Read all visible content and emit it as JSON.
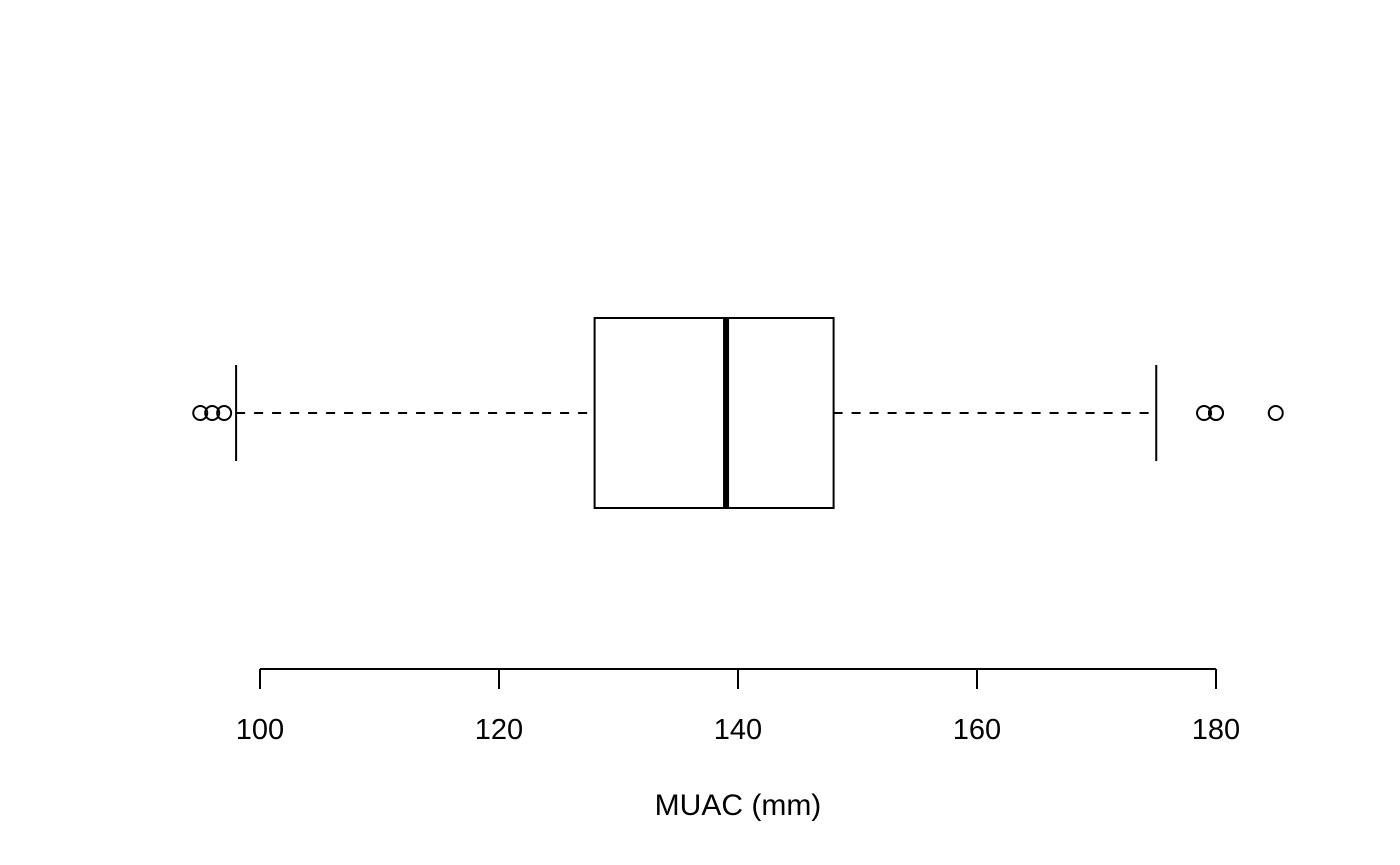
{
  "chart_data": {
    "type": "boxplot",
    "orientation": "horizontal",
    "title": "",
    "xlabel": "MUAC (mm)",
    "ylabel": "",
    "xlim": [
      95,
      185
    ],
    "xticks": [
      100,
      120,
      140,
      160,
      180
    ],
    "grid": false,
    "box": {
      "whisker_low": 98,
      "q1": 128,
      "median": 139,
      "q3": 148,
      "whisker_high": 175
    },
    "outliers": [
      95,
      96,
      97,
      179,
      180,
      180,
      185
    ]
  }
}
